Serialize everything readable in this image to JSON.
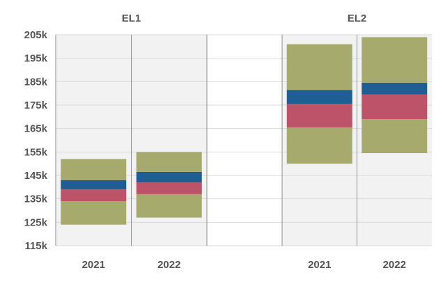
{
  "chart_data": {
    "type": "bar",
    "subtype": "floating-stacked-range",
    "title": "",
    "xlabel": "",
    "ylabel": "",
    "ylim": [
      115000,
      205000
    ],
    "yticks": [
      {
        "value": 115000,
        "label": "115k"
      },
      {
        "value": 125000,
        "label": "125k"
      },
      {
        "value": 135000,
        "label": "135k"
      },
      {
        "value": 145000,
        "label": "145k"
      },
      {
        "value": 155000,
        "label": "155k"
      },
      {
        "value": 165000,
        "label": "165k"
      },
      {
        "value": 175000,
        "label": "175k"
      },
      {
        "value": 185000,
        "label": "185k"
      },
      {
        "value": 195000,
        "label": "195k"
      },
      {
        "value": 205000,
        "label": "205k"
      }
    ],
    "grid": true,
    "legend": "none",
    "groups": [
      {
        "name": "EL1",
        "bars": [
          {
            "category": "2021",
            "segments": [
              124000,
              134000,
              139000,
              143000,
              152000
            ]
          },
          {
            "category": "2022",
            "segments": [
              127000,
              137000,
              142000,
              146500,
              155000
            ]
          }
        ]
      },
      {
        "name": "EL2",
        "bars": [
          {
            "category": "2021",
            "segments": [
              150000,
              165500,
              175500,
              181500,
              201000
            ]
          },
          {
            "category": "2022",
            "segments": [
              154500,
              169000,
              179500,
              184500,
              204000
            ]
          }
        ]
      }
    ],
    "segment_colors": [
      "#a6ab6d",
      "#bd5369",
      "#1e5e93",
      "#a6ab6d"
    ],
    "panel_colors": [
      "#f2f2f2",
      "#ffffff",
      "#f2f2f2"
    ]
  }
}
